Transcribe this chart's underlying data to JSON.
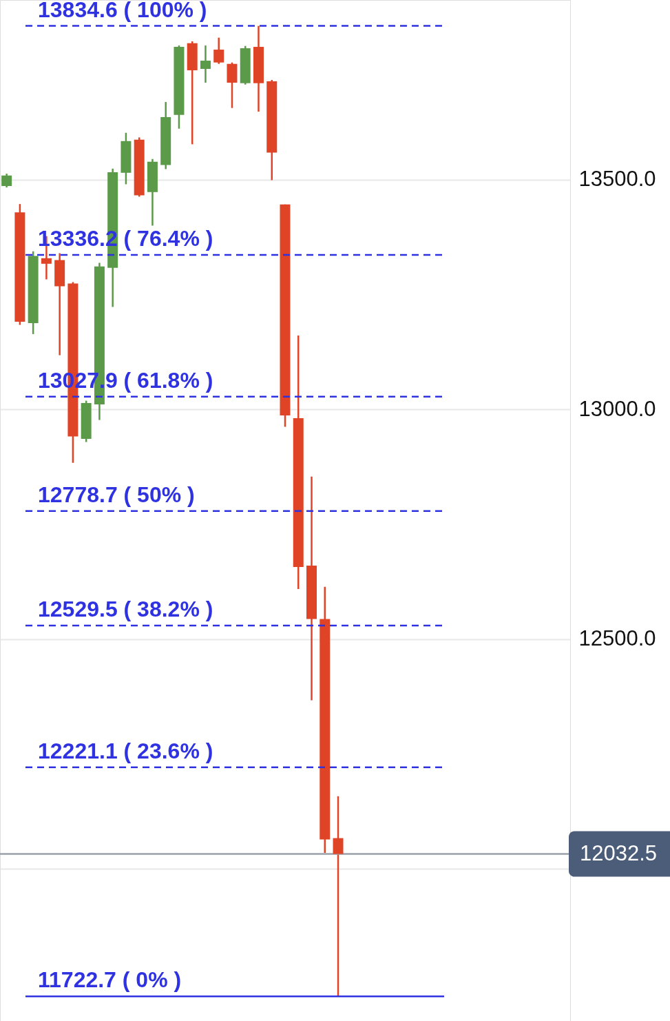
{
  "chart_data": {
    "type": "candlestick",
    "categories": [
      null,
      null,
      null,
      null,
      null,
      null,
      null,
      null,
      null,
      null,
      null,
      null,
      null,
      null,
      null,
      null,
      null,
      null,
      null,
      null,
      null,
      null,
      null,
      null,
      null,
      null,
      null,
      null,
      null,
      null,
      null,
      null,
      null,
      null,
      null,
      null,
      null,
      null,
      null,
      null,
      null,
      null,
      null
    ],
    "ohlc": [
      [
        13486,
        13513,
        13483,
        13509
      ],
      [
        13429,
        13447,
        13184,
        13191
      ],
      [
        13188,
        13344,
        13164,
        13334
      ],
      [
        13329,
        13377,
        13283,
        13317
      ],
      [
        13325,
        13340,
        13118,
        13268
      ],
      [
        13274,
        13277,
        12884,
        12941
      ],
      [
        12936,
        13019,
        12929,
        13014
      ],
      [
        13011,
        13319,
        12977,
        13311
      ],
      [
        13308,
        13524,
        13223,
        13516
      ],
      [
        13515,
        13602,
        13490,
        13584
      ],
      [
        13587,
        13592,
        13463,
        13466
      ],
      [
        13473,
        13545,
        13400,
        13539
      ],
      [
        13532,
        13669,
        13523,
        13636
      ],
      [
        13641,
        13792,
        13611,
        13789
      ],
      [
        13797,
        13801,
        13577,
        13738
      ],
      [
        13741,
        13792,
        13711,
        13759
      ],
      [
        13783,
        13809,
        13752,
        13755
      ],
      [
        13752,
        13755,
        13656,
        13711
      ],
      [
        13710,
        13791,
        13707,
        13786
      ],
      [
        13789,
        13834.6,
        13648,
        13710
      ],
      [
        13714,
        13717,
        13499,
        13559
      ],
      [
        13446,
        13446,
        12962,
        12987
      ],
      [
        12981,
        13161,
        12609,
        12657
      ],
      [
        12660,
        12854,
        12367,
        12544
      ],
      [
        12544,
        12614,
        12035,
        12064
      ],
      [
        12067,
        12158,
        11722.7,
        12032.5
      ],
      null,
      null,
      null,
      null,
      null,
      null,
      null,
      null,
      null,
      null,
      null,
      null,
      null,
      null,
      null,
      null,
      null
    ],
    "colors": [
      "#5b9a48",
      "#df4427",
      "#5b9a48",
      "#df4427",
      "#df4427",
      "#df4427",
      "#5b9a48",
      "#5b9a48",
      "#5b9a48",
      "#5b9a48",
      "#df4427",
      "#5b9a48",
      "#5b9a48",
      "#5b9a48",
      "#df4427",
      "#5b9a48",
      "#df4427",
      "#df4427",
      "#5b9a48",
      "#df4427",
      "#df4427",
      "#df4427",
      "#df4427",
      "#df4427",
      "#df4427",
      "#df4427",
      null,
      null,
      null,
      null,
      null,
      null,
      null,
      null,
      null,
      null,
      null,
      null,
      null,
      null,
      null,
      null,
      null
    ],
    "ylim": [
      11669,
      13891
    ],
    "yticks": [
      {
        "value": 12000,
        "label": null
      },
      {
        "value": 12500,
        "label": "12500.0"
      },
      {
        "value": 13000,
        "label": "13000.0"
      },
      {
        "value": 13500,
        "label": "13500.0"
      }
    ],
    "tick_labels": "y",
    "grid": "y",
    "ref_lines": [
      {
        "axis": "y",
        "value": 13834.6,
        "label": "13834.6 ( 100% )",
        "color": "#2f32e0",
        "line_style": "dashed"
      },
      {
        "axis": "y",
        "value": 13336.2,
        "label": "13336.2 ( 76.4% )",
        "color": "#2f32e0",
        "line_style": "dashed"
      },
      {
        "axis": "y",
        "value": 13027.9,
        "label": "13027.9 ( 61.8% )",
        "color": "#2f32e0",
        "line_style": "dashed"
      },
      {
        "axis": "y",
        "value": 12778.7,
        "label": "12778.7 ( 50% )",
        "color": "#2f32e0",
        "line_style": "dashed"
      },
      {
        "axis": "y",
        "value": 12529.5,
        "label": "12529.5 ( 38.2% )",
        "color": "#2f32e0",
        "line_style": "dashed"
      },
      {
        "axis": "y",
        "value": 12221.1,
        "label": "12221.1 ( 23.6% )",
        "color": "#2f32e0",
        "line_style": "dashed"
      },
      {
        "axis": "y",
        "value": 11722.7,
        "label": "11722.7 ( 0% )",
        "color": "#2f32e0",
        "line_style": "solid"
      },
      {
        "axis": "y",
        "value": 12032.5,
        "label": "12032.5",
        "color": "#9aa1aa",
        "line_style": "solid"
      }
    ]
  }
}
